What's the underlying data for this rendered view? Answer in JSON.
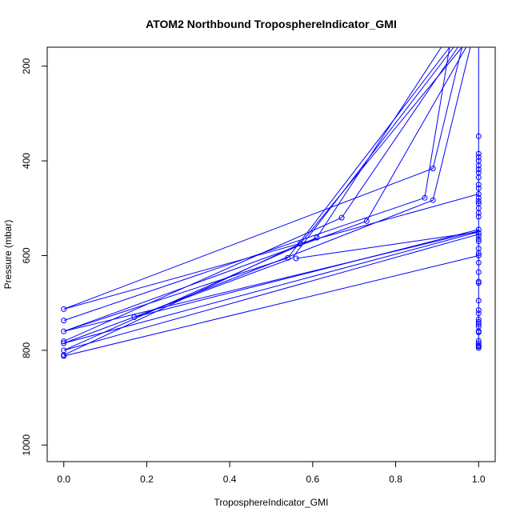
{
  "chart_data": {
    "type": "line",
    "title": "ATOM2 Northbound TroposphereIndicator_GMI",
    "xlabel": "TroposphereIndicator_GMI",
    "ylabel": "Pressure (mbar)",
    "xlim": [
      -0.04,
      1.04
    ],
    "ylim": [
      1035,
      160
    ],
    "y_reversed": true,
    "x_ticks": [
      0.0,
      0.2,
      0.4,
      0.6,
      0.8,
      1.0
    ],
    "x_tick_labels": [
      "0.0",
      "0.2",
      "0.4",
      "0.6",
      "0.8",
      "1.0"
    ],
    "y_ticks": [
      200,
      400,
      600,
      800,
      1000
    ],
    "y_tick_labels": [
      "200",
      "400",
      "600",
      "800",
      "1000"
    ],
    "grid": false,
    "series_color": "#0000ff",
    "series": [
      {
        "x": [
          0.0,
          0.89,
          0.96
        ],
        "y": [
          713,
          416,
          160
        ]
      },
      {
        "x": [
          0.0,
          0.87,
          0.93
        ],
        "y": [
          737,
          478,
          160
        ]
      },
      {
        "x": [
          0.0,
          0.73,
          0.97
        ],
        "y": [
          760,
          527,
          160
        ]
      },
      {
        "x": [
          0.0,
          0.67,
          0.95
        ],
        "y": [
          781,
          520,
          160
        ]
      },
      {
        "x": [
          0.0,
          0.61,
          0.91
        ],
        "y": [
          800,
          562,
          160
        ]
      },
      {
        "x": [
          0.0,
          0.57,
          0.96
        ],
        "y": [
          810,
          575,
          160
        ]
      },
      {
        "x": [
          0.0,
          0.55,
          0.94
        ],
        "y": [
          785,
          606,
          160
        ]
      },
      {
        "x": [
          0.0,
          0.54,
          0.93
        ],
        "y": [
          760,
          605,
          160
        ]
      },
      {
        "x": [
          0.17,
          0.89,
          0.98
        ],
        "y": [
          730,
          483,
          160
        ]
      },
      {
        "x": [
          0.0,
          1.0
        ],
        "y": [
          713,
          470
        ]
      },
      {
        "x": [
          0.0,
          1.0
        ],
        "y": [
          812,
          600
        ]
      },
      {
        "x": [
          0.17,
          1.0
        ],
        "y": [
          730,
          545
        ]
      },
      {
        "x": [
          0.0,
          1.0
        ],
        "y": [
          785,
          550
        ]
      },
      {
        "x": [
          0.0,
          1.0
        ],
        "y": [
          760,
          548
        ]
      },
      {
        "x": [
          0.56,
          1.0
        ],
        "y": [
          606,
          550
        ]
      },
      {
        "x": [
          0.0,
          1.0
        ],
        "y": [
          800,
          555
        ]
      },
      {
        "x": [
          1.0,
          1.0
        ],
        "y": [
          160,
          795
        ]
      }
    ],
    "points": {
      "x": [
        0,
        0,
        0,
        0,
        0,
        0,
        0,
        0,
        0.17,
        0.54,
        0.56,
        0.57,
        0.61,
        0.67,
        0.73,
        0.87,
        0.89,
        0.89,
        1,
        1,
        1,
        1,
        1,
        1,
        1,
        1,
        1,
        1,
        1,
        1,
        1,
        1,
        1,
        1,
        1,
        1,
        1,
        1,
        1,
        1,
        1,
        1,
        1,
        1,
        1,
        1,
        1,
        1,
        1,
        1,
        1,
        1,
        1,
        1,
        1,
        1,
        1,
        1,
        1,
        1,
        1,
        1
      ],
      "y": [
        713,
        737,
        760,
        781,
        800,
        810,
        812,
        785,
        730,
        605,
        606,
        575,
        562,
        520,
        527,
        478,
        416,
        483,
        348,
        385,
        392,
        400,
        410,
        418,
        425,
        435,
        450,
        458,
        470,
        478,
        485,
        490,
        500,
        510,
        518,
        545,
        552,
        558,
        565,
        570,
        585,
        595,
        600,
        615,
        635,
        655,
        658,
        695,
        715,
        722,
        735,
        740,
        745,
        750,
        760,
        762,
        780,
        785,
        790,
        792,
        795,
        760
      ]
    }
  }
}
